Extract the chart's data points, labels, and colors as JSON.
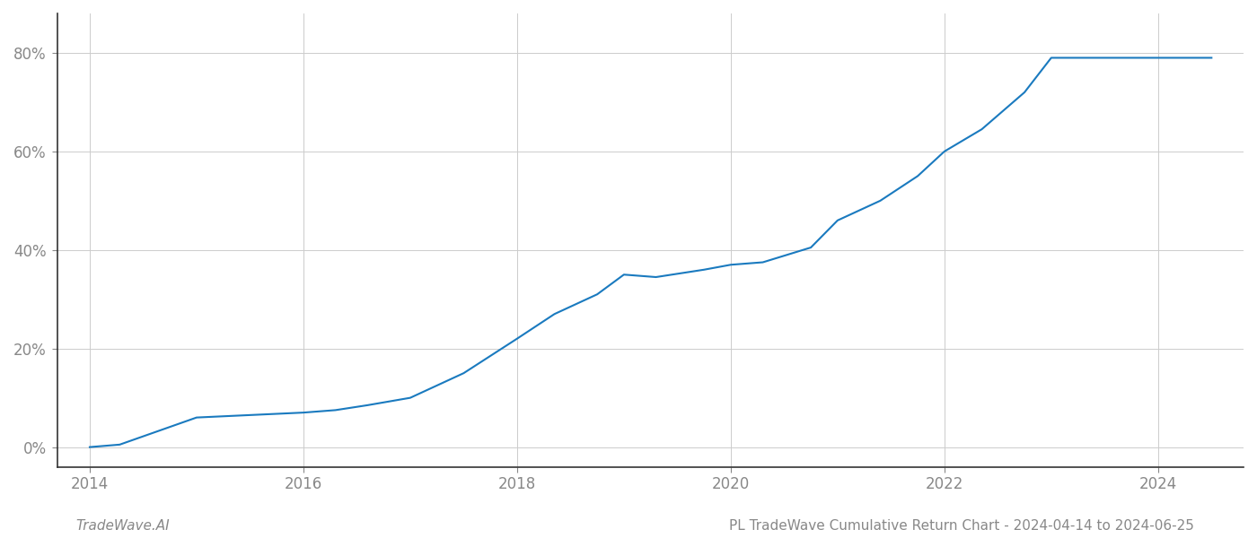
{
  "x_years": [
    2014.0,
    2014.28,
    2015.0,
    2015.5,
    2016.0,
    2016.3,
    2016.6,
    2017.0,
    2017.5,
    2018.0,
    2018.35,
    2018.75,
    2019.0,
    2019.3,
    2019.75,
    2020.0,
    2020.3,
    2020.75,
    2021.0,
    2021.4,
    2021.75,
    2022.0,
    2022.35,
    2022.75,
    2023.0,
    2023.5,
    2024.0,
    2024.5
  ],
  "y_values": [
    0.0,
    0.005,
    0.06,
    0.065,
    0.07,
    0.075,
    0.085,
    0.1,
    0.15,
    0.22,
    0.27,
    0.31,
    0.35,
    0.345,
    0.36,
    0.37,
    0.375,
    0.405,
    0.46,
    0.5,
    0.55,
    0.6,
    0.645,
    0.72,
    0.79,
    0.79,
    0.79,
    0.79
  ],
  "line_color": "#1a7abf",
  "line_width": 1.5,
  "background_color": "#ffffff",
  "grid_color": "#cccccc",
  "footer_left": "TradeWave.AI",
  "footer_right": "PL TradeWave Cumulative Return Chart - 2024-04-14 to 2024-06-25",
  "yticks": [
    0.0,
    0.2,
    0.4,
    0.6,
    0.8
  ],
  "ytick_labels": [
    "0%",
    "20%",
    "40%",
    "60%",
    "80%"
  ],
  "xticks": [
    2014,
    2016,
    2018,
    2020,
    2022,
    2024
  ],
  "xtick_labels": [
    "2014",
    "2016",
    "2018",
    "2020",
    "2022",
    "2024"
  ],
  "xlim": [
    2013.7,
    2024.8
  ],
  "ylim": [
    -0.04,
    0.88
  ],
  "tick_color": "#888888",
  "tick_fontsize": 12,
  "footer_fontsize": 11,
  "spine_color": "#333333"
}
